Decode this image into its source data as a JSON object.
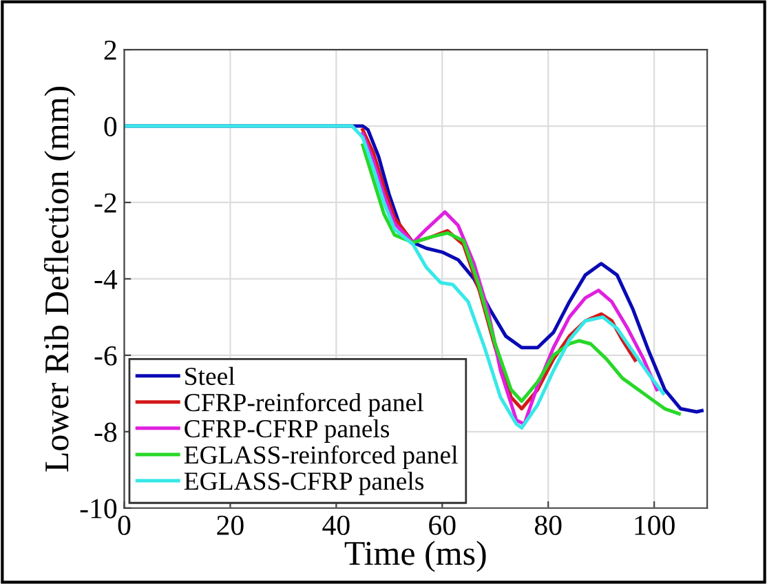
{
  "chart_data": {
    "type": "line",
    "xlabel": "Time (ms)",
    "ylabel": "Lower Rib Deflection (mm)",
    "xlim": [
      0,
      110
    ],
    "ylim": [
      -10,
      2
    ],
    "xticks": [
      0,
      20,
      40,
      60,
      80,
      100
    ],
    "yticks": [
      2,
      0,
      -2,
      -4,
      -6,
      -8,
      -10
    ],
    "grid": true,
    "legend": "bottom left",
    "line_style": "solid",
    "marker": "none",
    "series": [
      {
        "name": "Steel",
        "color": "#0a0ab4",
        "x": [
          0,
          30,
          45,
          46,
          48,
          50,
          52,
          54.5,
          57,
          60,
          63,
          66,
          69,
          72,
          75,
          78,
          81,
          84,
          87,
          90,
          93,
          96,
          99,
          102,
          105,
          108,
          109
        ],
        "values": [
          0,
          0,
          0,
          -0.1,
          -0.8,
          -1.8,
          -2.6,
          -3.05,
          -3.2,
          -3.3,
          -3.5,
          -4.0,
          -4.8,
          -5.5,
          -5.8,
          -5.8,
          -5.4,
          -4.6,
          -3.9,
          -3.6,
          -3.9,
          -4.8,
          -5.9,
          -6.9,
          -7.4,
          -7.48,
          -7.45
        ]
      },
      {
        "name": "CFRP-reinforced panel",
        "color": "#d41818",
        "x": [
          45,
          47,
          49,
          51,
          54.5,
          58,
          61,
          64,
          67,
          70,
          73,
          75,
          78,
          81,
          84,
          87,
          90,
          92,
          94,
          96.4
        ],
        "values": [
          -0.1,
          -0.7,
          -1.6,
          -2.4,
          -3.05,
          -2.9,
          -2.74,
          -3.1,
          -4.3,
          -5.8,
          -7.1,
          -7.4,
          -6.9,
          -6.1,
          -5.5,
          -5.1,
          -4.92,
          -5.1,
          -5.6,
          -6.13
        ]
      },
      {
        "name": "CFRP-CFRP panels",
        "color": "#e020e0",
        "x": [
          45,
          47,
          49,
          51,
          54.5,
          57,
          60.5,
          63,
          66,
          68.6,
          71,
          74,
          75.5,
          78,
          81,
          84,
          87,
          89.5,
          92,
          95,
          98,
          100.5
        ],
        "values": [
          -0.2,
          -0.9,
          -1.8,
          -2.55,
          -3.05,
          -2.7,
          -2.25,
          -2.6,
          -3.6,
          -4.8,
          -6.4,
          -7.7,
          -7.8,
          -6.8,
          -5.8,
          -5.0,
          -4.5,
          -4.3,
          -4.6,
          -5.3,
          -6.1,
          -6.9
        ]
      },
      {
        "name": "EGLASS-reinforced panel",
        "color": "#28d828",
        "x": [
          45,
          47,
          49,
          51,
          54.5,
          58,
          61,
          64,
          67,
          70,
          73,
          75,
          78,
          81,
          84,
          85.8,
          88,
          91,
          94,
          97,
          100,
          102,
          104.7
        ],
        "values": [
          -0.5,
          -1.4,
          -2.3,
          -2.85,
          -3.05,
          -2.9,
          -2.8,
          -3.0,
          -4.2,
          -5.7,
          -6.9,
          -7.2,
          -6.7,
          -6.0,
          -5.7,
          -5.62,
          -5.7,
          -6.1,
          -6.6,
          -6.9,
          -7.2,
          -7.4,
          -7.53
        ]
      },
      {
        "name": "EGLASS-CFRP panels",
        "color": "#38e8e8",
        "x": [
          0,
          30,
          43,
          45,
          47,
          49,
          51,
          54.5,
          57,
          59.7,
          62,
          64.9,
          68,
          71,
          74,
          75,
          78,
          81,
          84,
          87,
          90.3,
          93,
          96,
          99,
          101.7
        ],
        "values": [
          0,
          0,
          0,
          -0.3,
          -1.1,
          -2.0,
          -2.7,
          -3.1,
          -3.7,
          -4.1,
          -4.15,
          -4.6,
          -5.8,
          -7.1,
          -7.8,
          -7.9,
          -7.3,
          -6.4,
          -5.6,
          -5.1,
          -5.0,
          -5.3,
          -5.9,
          -6.5,
          -7.0
        ]
      }
    ]
  }
}
